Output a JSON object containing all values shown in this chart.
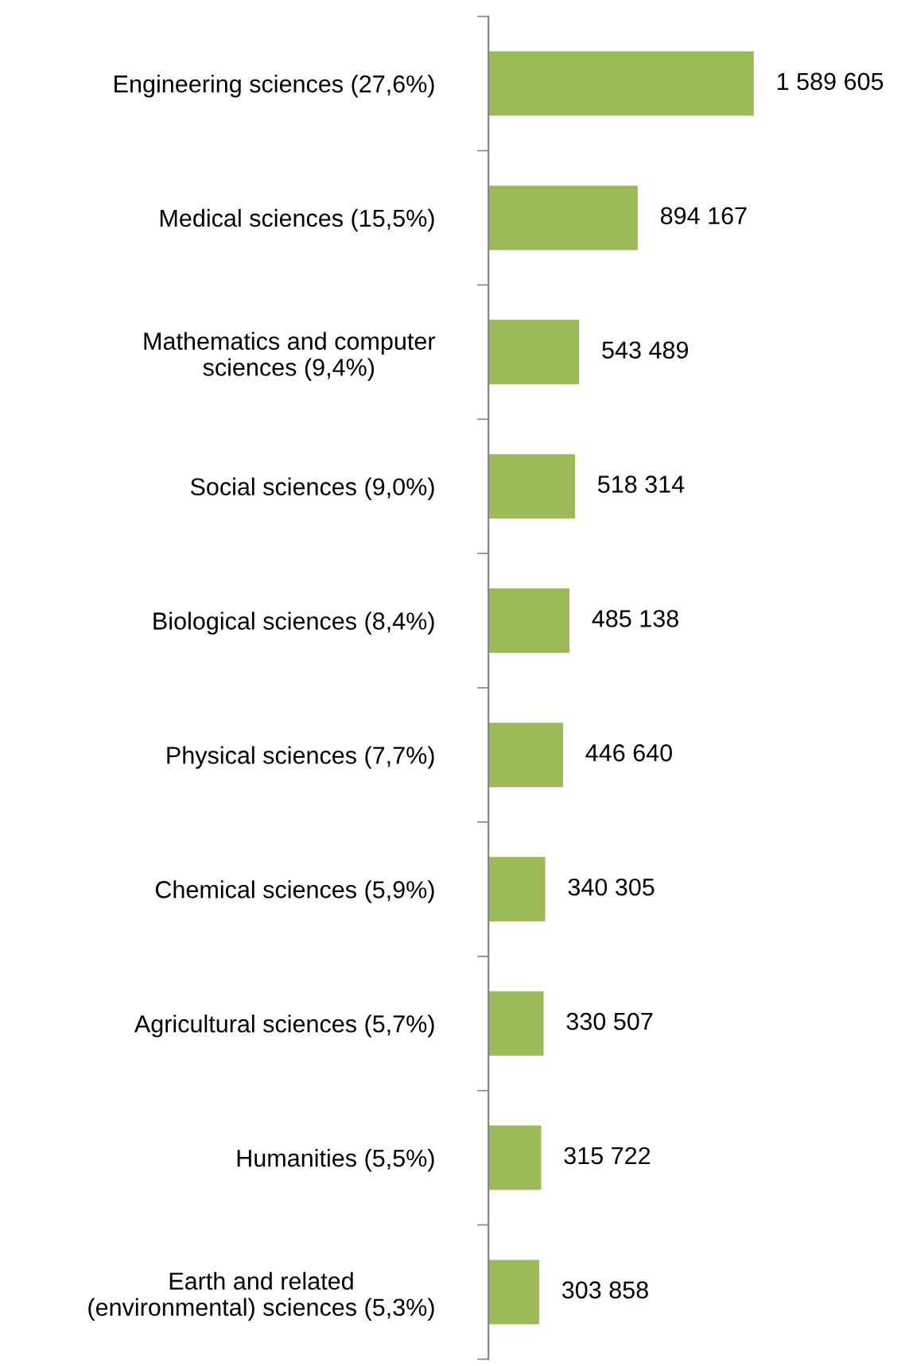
{
  "chart_data": {
    "type": "bar",
    "orientation": "horizontal",
    "categories": [
      "Engineering sciences (27,6%)",
      "Medical sciences (15,5%)",
      "Mathematics and computer\nsciences (9,4%)",
      "Social sciences (9,0%)",
      "Biological sciences (8,4%)",
      "Physical sciences (7,7%)",
      "Chemical sciences (5,9%)",
      "Agricultural sciences (5,7%)",
      "Humanities (5,5%)",
      "Earth and related\n(environmental) sciences (5,3%)"
    ],
    "values": [
      1589605,
      894167,
      543489,
      518314,
      485138,
      446640,
      340305,
      330507,
      315722,
      303858
    ],
    "value_labels": [
      "1 589 605",
      "894 167",
      "543 489",
      "518 314",
      "485 138",
      "446 640",
      "340 305",
      "330 507",
      "315 722",
      "303 858"
    ],
    "color": "#9bbb59",
    "grid": false,
    "legend": false,
    "tick_labels": "y"
  }
}
